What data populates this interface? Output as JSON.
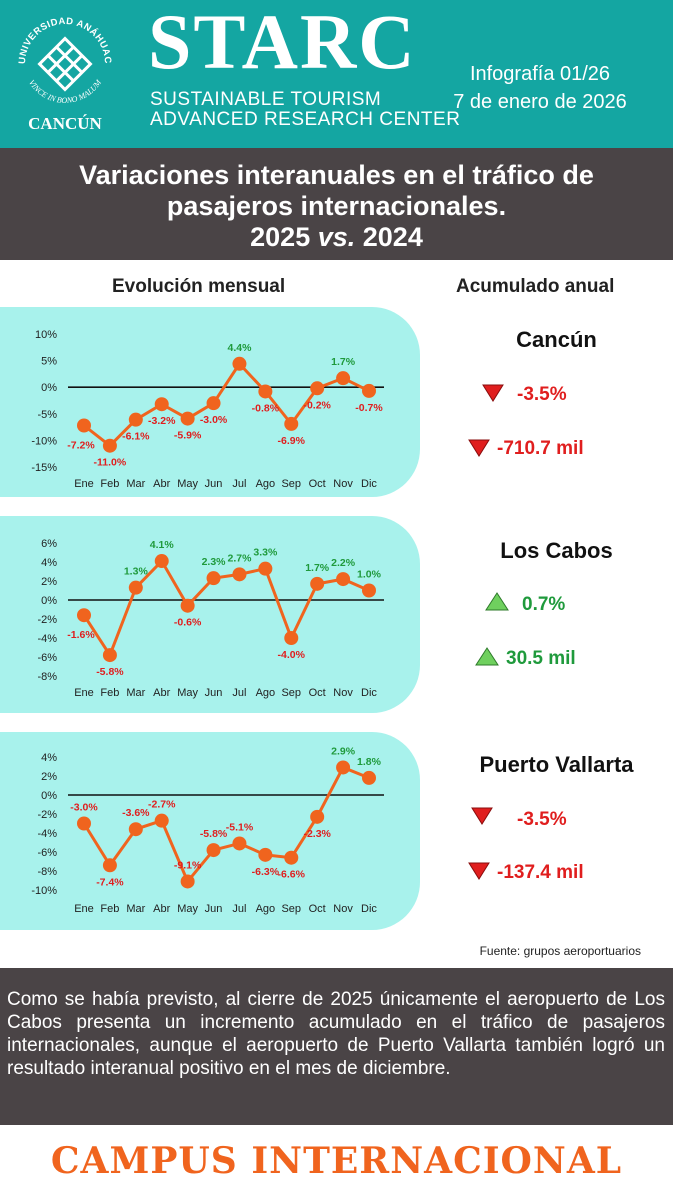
{
  "header": {
    "university_arc": "UNIVERSIDAD ANÁHUAC",
    "motto_arc": "VINCE IN BONO MALUM",
    "campus_label": "CANCÚN",
    "brand": "STARC",
    "brand_sub1": "SUSTAINABLE TOURISM",
    "brand_sub2": "ADVANCED RESEARCH CENTER",
    "infografia": "Infografía 01/26",
    "date": "7 de enero de 2026"
  },
  "title": {
    "line1": "Variaciones interanuales en el tráfico de",
    "line2": "pasajeros internacionales.",
    "line3_a": "2025 ",
    "line3_vs": "vs.",
    "line3_b": " 2024"
  },
  "columns": {
    "left": "Evolución mensual",
    "right": "Acumulado anual"
  },
  "colors": {
    "teal": "#14a6a2",
    "panel": "#a8f2ec",
    "dark": "#4a4446",
    "marker": "#f0641e",
    "negative": "#e01e1e",
    "positive": "#1f9a3c",
    "campus": "#f0641e"
  },
  "chart_data": [
    {
      "type": "line",
      "airport": "Cancún",
      "categories": [
        "Ene",
        "Feb",
        "Mar",
        "Abr",
        "May",
        "Jun",
        "Jul",
        "Ago",
        "Sep",
        "Oct",
        "Nov",
        "Dic"
      ],
      "values": [
        -7.2,
        -11.0,
        -6.1,
        -3.2,
        -5.9,
        -3.0,
        4.4,
        -0.8,
        -6.9,
        -0.2,
        1.7,
        -0.7
      ],
      "labels": [
        "-7.2%",
        "-11.0%",
        "-6.1%",
        "-3.2%",
        "-5.9%",
        "-3.0%",
        "4.4%",
        "-0.8%",
        "-6.9%",
        "-0.2%",
        "1.7%",
        "-0.7%"
      ],
      "yticks": [
        "10%",
        "5%",
        "0%",
        "-5%",
        "-10%",
        "-15%"
      ],
      "ylim": [
        -15,
        10
      ],
      "ytick_values": [
        10,
        5,
        0,
        -5,
        -10,
        -15
      ],
      "annual_pct": "-3.5%",
      "annual_abs": "-710.7 mil",
      "annual_trend": "down"
    },
    {
      "type": "line",
      "airport": "Los Cabos",
      "categories": [
        "Ene",
        "Feb",
        "Mar",
        "Abr",
        "May",
        "Jun",
        "Jul",
        "Ago",
        "Sep",
        "Oct",
        "Nov",
        "Dic"
      ],
      "values": [
        -1.6,
        -5.8,
        1.3,
        4.1,
        -0.6,
        2.3,
        2.7,
        3.3,
        -4.0,
        1.7,
        2.2,
        1.0
      ],
      "labels": [
        "-1.6%",
        "-5.8%",
        "1.3%",
        "4.1%",
        "-0.6%",
        "2.3%",
        "2.7%",
        "3.3%",
        "-4.0%",
        "1.7%",
        "2.2%",
        "1.0%"
      ],
      "yticks": [
        "6%",
        "4%",
        "2%",
        "0%",
        "-2%",
        "-4%",
        "-6%",
        "-8%"
      ],
      "ylim": [
        -8,
        6
      ],
      "ytick_values": [
        6,
        4,
        2,
        0,
        -2,
        -4,
        -6,
        -8
      ],
      "annual_pct": "0.7%",
      "annual_abs": "30.5 mil",
      "annual_trend": "up"
    },
    {
      "type": "line",
      "airport": "Puerto Vallarta",
      "categories": [
        "Ene",
        "Feb",
        "Mar",
        "Abr",
        "May",
        "Jun",
        "Jul",
        "Ago",
        "Sep",
        "Oct",
        "Nov",
        "Dic"
      ],
      "values": [
        -3.0,
        -7.4,
        -3.6,
        -2.7,
        -9.1,
        -5.8,
        -5.1,
        -6.3,
        -6.6,
        -2.3,
        2.9,
        1.8
      ],
      "labels": [
        "-3.0%",
        "-7.4%",
        "-3.6%",
        "-2.7%",
        "-9.1%",
        "-5.8%",
        "-5.1%",
        "-6.3%",
        "-6.6%",
        "-2.3%",
        "2.9%",
        "1.8%"
      ],
      "yticks": [
        "4%",
        "2%",
        "0%",
        "-2%",
        "-4%",
        "-6%",
        "-8%",
        "-10%"
      ],
      "ylim": [
        -10,
        4
      ],
      "ytick_values": [
        4,
        2,
        0,
        -2,
        -4,
        -6,
        -8,
        -10
      ],
      "annual_pct": "-3.5%",
      "annual_abs": "-137.4 mil",
      "annual_trend": "down"
    }
  ],
  "source": "Fuente: grupos aeroportuarios",
  "note": "Como se había previsto, al cierre de 2025 únicamente el aeropuerto de Los Cabos presenta un incremento acumulado en el tráfico de pasajeros internacionales, aunque el aeropuerto de Puerto Vallarta también logró un resultado interanual positivo en el mes de diciembre.",
  "footer": "CAMPUS INTERNACIONAL"
}
